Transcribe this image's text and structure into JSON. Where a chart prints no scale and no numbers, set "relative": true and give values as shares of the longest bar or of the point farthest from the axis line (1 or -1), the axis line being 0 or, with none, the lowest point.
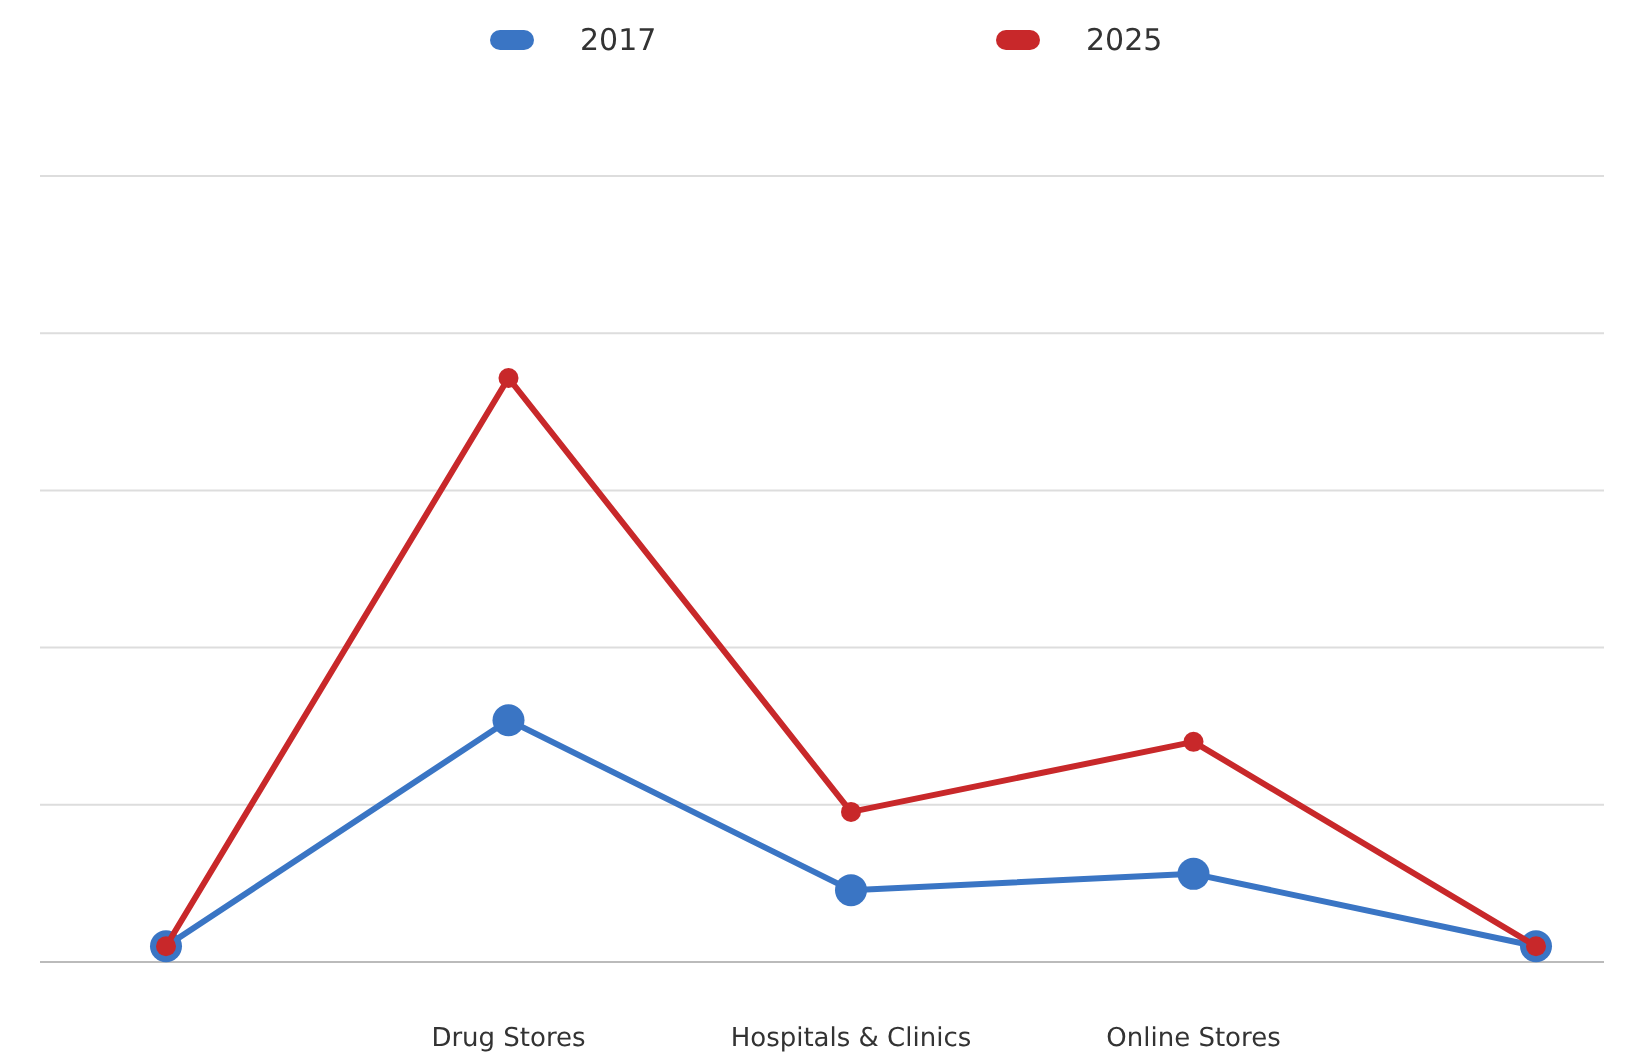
{
  "chart_data": {
    "type": "line",
    "relative": true,
    "categories": [
      null,
      "Drug Stores",
      "Hospitals & Clinics",
      "Online Stores",
      null
    ],
    "series": [
      {
        "name": "2017",
        "color": "#3a75c4",
        "values": [
          0.027,
          0.414,
          0.123,
          0.151,
          0.027
        ]
      },
      {
        "name": "2025",
        "color": "#c8282a",
        "values": [
          0.027,
          1,
          0.257,
          0.377,
          0.027
        ]
      }
    ],
    "grid": true,
    "legend": "top",
    "marker": "circle",
    "line_style": "solid"
  }
}
